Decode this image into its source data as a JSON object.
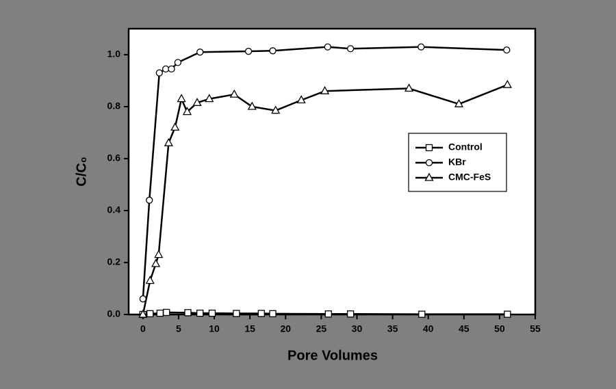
{
  "chart_data": {
    "type": "line",
    "xlabel": "Pore Volumes",
    "ylabel": "C/C₀",
    "xlim": [
      -2,
      55
    ],
    "ylim": [
      0,
      1.1
    ],
    "xticks": [
      0,
      5,
      10,
      15,
      20,
      25,
      30,
      35,
      40,
      45,
      50,
      55
    ],
    "yticks": [
      {
        "value": 0,
        "label": "0.0"
      },
      0.2,
      0.4,
      0.6,
      0.8,
      {
        "value": 1,
        "label": "1.0"
      }
    ],
    "legend": "right",
    "series": [
      {
        "name": "Control",
        "color": "#000000",
        "marker": "square",
        "x": [
          0,
          1.0,
          2.4,
          3.3,
          6.3,
          8.0,
          9.7,
          13.1,
          16.6,
          18.2,
          26.0,
          29.1,
          39.1,
          51.1
        ],
        "values": [
          0,
          0.003,
          0.005,
          0.008,
          0.007,
          0.005,
          0.005,
          0.004,
          0.004,
          0.003,
          0.002,
          0.002,
          0.001,
          0.001
        ]
      },
      {
        "name": "KBr",
        "color": "#000000",
        "marker": "circle",
        "x": [
          0,
          0.9,
          2.3,
          3.2,
          4.0,
          4.9,
          8.0,
          14.8,
          18.2,
          25.9,
          29.1,
          39.0,
          51.0
        ],
        "values": [
          0.06,
          0.44,
          0.93,
          0.945,
          0.945,
          0.97,
          1.01,
          1.013,
          1.015,
          1.03,
          1.023,
          1.03,
          1.018
        ]
      },
      {
        "name": "CMC-FeS",
        "color": "#000000",
        "marker": "triangle",
        "x": [
          0,
          1.0,
          1.8,
          2.2,
          3.6,
          4.5,
          5.4,
          6.2,
          7.6,
          9.3,
          12.8,
          15.3,
          18.6,
          22.2,
          25.5,
          37.3,
          44.3,
          51.1
        ],
        "values": [
          0,
          0.13,
          0.195,
          0.23,
          0.66,
          0.72,
          0.83,
          0.78,
          0.815,
          0.83,
          0.847,
          0.8,
          0.785,
          0.825,
          0.86,
          0.87,
          0.81,
          0.884
        ]
      }
    ]
  }
}
